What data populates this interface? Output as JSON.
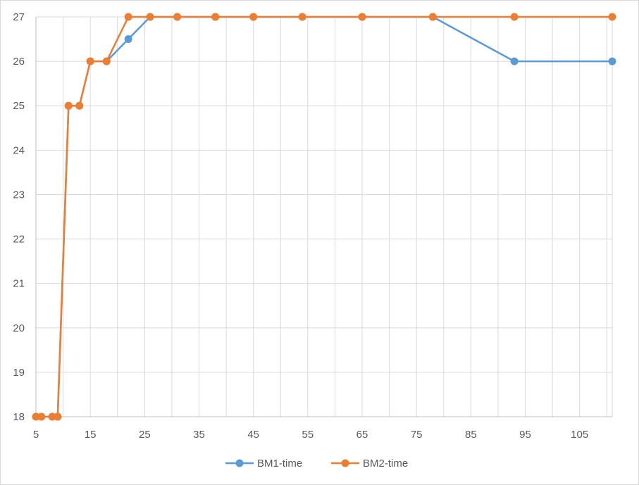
{
  "chart_data": {
    "type": "line",
    "title": "",
    "xlabel": "",
    "ylabel": "",
    "xlim": [
      5,
      111
    ],
    "ylim": [
      18,
      27
    ],
    "x_ticks": [
      5,
      15,
      25,
      35,
      45,
      55,
      65,
      75,
      85,
      95,
      105
    ],
    "y_ticks": [
      18,
      19,
      20,
      21,
      22,
      23,
      24,
      25,
      26,
      27
    ],
    "grid": true,
    "legend_position": "bottom",
    "series": [
      {
        "name": "BM1-time",
        "color": "#5b9bd5",
        "marker": "circle",
        "points": [
          [
            5,
            18
          ],
          [
            6,
            18
          ],
          [
            8,
            18
          ],
          [
            9,
            18
          ],
          [
            11,
            25
          ],
          [
            13,
            25
          ],
          [
            15,
            26
          ],
          [
            18,
            26
          ],
          [
            22,
            26.5
          ],
          [
            26,
            27
          ],
          [
            31,
            27
          ],
          [
            38,
            27
          ],
          [
            45,
            27
          ],
          [
            54,
            27
          ],
          [
            65,
            27
          ],
          [
            78,
            27
          ],
          [
            93,
            26
          ],
          [
            111,
            26
          ]
        ]
      },
      {
        "name": "BM2-time",
        "color": "#ed7d31",
        "marker": "circle",
        "points": [
          [
            5,
            18
          ],
          [
            6,
            18
          ],
          [
            8,
            18
          ],
          [
            9,
            18
          ],
          [
            11,
            25
          ],
          [
            13,
            25
          ],
          [
            15,
            26
          ],
          [
            18,
            26
          ],
          [
            22,
            27
          ],
          [
            26,
            27
          ],
          [
            31,
            27
          ],
          [
            38,
            27
          ],
          [
            45,
            27
          ],
          [
            54,
            27
          ],
          [
            65,
            27
          ],
          [
            78,
            27
          ],
          [
            93,
            27
          ],
          [
            111,
            27
          ]
        ]
      }
    ]
  }
}
